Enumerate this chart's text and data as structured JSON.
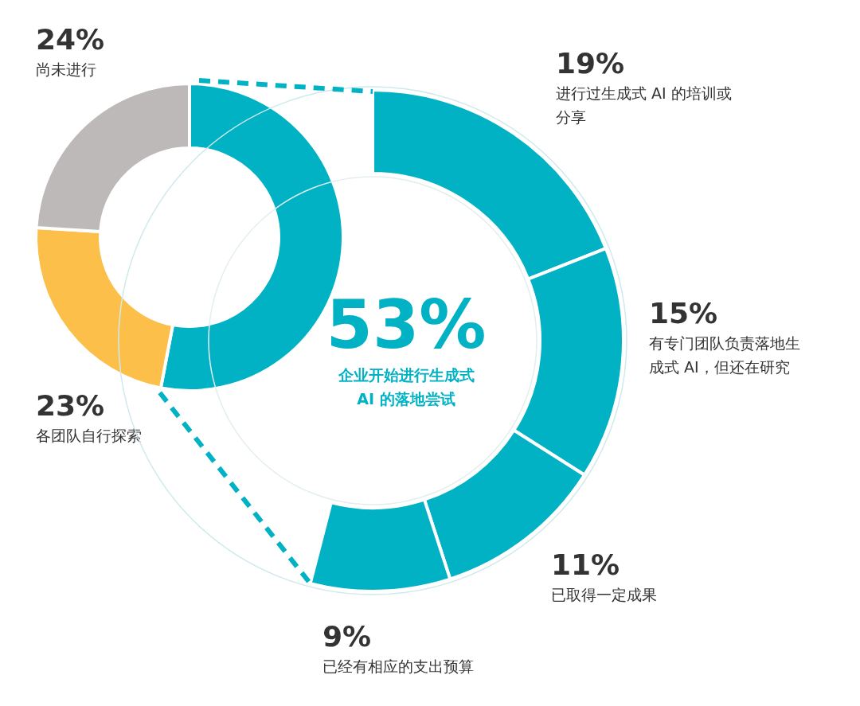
{
  "chart_data": [
    {
      "type": "donut",
      "categories": [
        "企业开始进行生成式 AI 的落地尝试",
        "各团队自行探索",
        "尚未进行"
      ],
      "values": [
        53,
        23,
        24
      ],
      "colors": [
        "#00b2c4",
        "#fcbf4a",
        "#bdb9b9"
      ],
      "value_labels": [
        "53%",
        "23%",
        "24%"
      ]
    },
    {
      "type": "donut",
      "categories": [
        "进行过生成式 AI 的培训或分享",
        "有专门团队负责落地生成式 AI，但还在研究",
        "已取得一定成果",
        "已经有相应的支出预算"
      ],
      "values": [
        19,
        15,
        11,
        9
      ],
      "colors": [
        "#00b2c4",
        "#00b2c4",
        "#00b2c4",
        "#00b2c4"
      ],
      "value_labels": [
        "19%",
        "15%",
        "11%",
        "9%"
      ]
    }
  ]
}
